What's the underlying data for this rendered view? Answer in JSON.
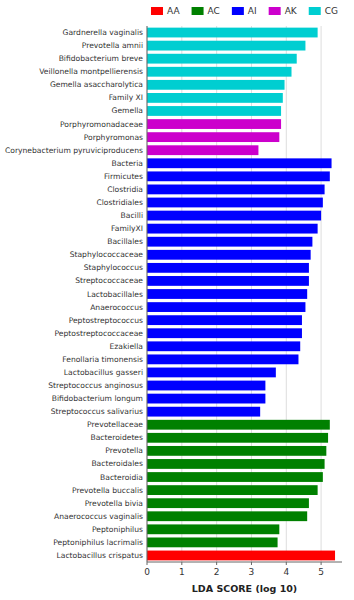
{
  "chart_data": {
    "type": "bar",
    "orientation": "horizontal",
    "categories": [
      "Gardnerella vaginalis",
      "Prevotella amnii",
      "Bifidobacterium breve",
      "Veillonella montpellierensis",
      "Gemella asaccharolytica",
      "Family XI",
      "Gemella",
      "Porphyromonadaceae",
      "Porphyromonas",
      "Corynebacterium pyruviciproducens",
      "Bacteria",
      "Firmicutes",
      "Clostridia",
      "Clostridiales",
      "Bacilli",
      "FamilyXI",
      "Bacillales",
      "Staphylococcaceae",
      "Staphylococcus",
      "Streptococcaceae",
      "Lactobacillales",
      "Anaerococcus",
      "Peptostreptococcus",
      "Peptostreptococcaceae",
      "Ezakiella",
      "Fenollaria timonensis",
      "Lactobacillus gasseri",
      "Streptococcus anginosus",
      "Bifidobacterium longum",
      "Streptococcus salivarius",
      "Prevotellaceae",
      "Bacteroidetes",
      "Prevotella",
      "Bacteroidales",
      "Bacteroidia",
      "Prevotella buccalis",
      "Prevotella bivia",
      "Anaerococcus vaginalis",
      "Peptoniphilus",
      "Peptoniphilus lacrimalis",
      "Lactobacillus crispatus"
    ],
    "series": [
      {
        "name": "AA",
        "color": "#FF0000",
        "values": [
          null,
          null,
          null,
          null,
          null,
          null,
          null,
          null,
          null,
          null,
          null,
          null,
          null,
          null,
          null,
          null,
          null,
          null,
          null,
          null,
          null,
          null,
          null,
          null,
          null,
          null,
          null,
          null,
          null,
          null,
          null,
          null,
          null,
          null,
          null,
          null,
          null,
          null,
          null,
          null,
          5.4
        ]
      },
      {
        "name": "AC",
        "color": "#008000",
        "values": [
          null,
          null,
          null,
          null,
          null,
          null,
          null,
          null,
          null,
          null,
          null,
          null,
          null,
          null,
          null,
          null,
          null,
          null,
          null,
          null,
          null,
          null,
          null,
          null,
          null,
          null,
          null,
          null,
          null,
          null,
          5.25,
          5.2,
          5.15,
          5.1,
          5.05,
          4.9,
          4.65,
          4.6,
          3.8,
          3.75,
          null
        ]
      },
      {
        "name": "AI",
        "color": "#0000FF",
        "values": [
          null,
          null,
          null,
          null,
          null,
          null,
          null,
          null,
          null,
          null,
          5.3,
          5.25,
          5.1,
          5.05,
          5.0,
          4.9,
          4.75,
          4.7,
          4.65,
          4.65,
          4.6,
          4.55,
          4.45,
          4.45,
          4.4,
          4.35,
          3.7,
          3.4,
          3.4,
          3.25,
          null,
          null,
          null,
          null,
          null,
          null,
          null,
          null,
          null,
          null,
          null
        ]
      },
      {
        "name": "AK",
        "color": "#CC00CC",
        "values": [
          null,
          null,
          null,
          null,
          null,
          null,
          null,
          3.85,
          3.8,
          3.2,
          null,
          null,
          null,
          null,
          null,
          null,
          null,
          null,
          null,
          null,
          null,
          null,
          null,
          null,
          null,
          null,
          null,
          null,
          null,
          null,
          null,
          null,
          null,
          null,
          null,
          null,
          null,
          null,
          null,
          null,
          null
        ]
      },
      {
        "name": "CG",
        "color": "#00CED1",
        "values": [
          4.9,
          4.55,
          4.3,
          4.15,
          3.95,
          3.9,
          3.85,
          null,
          null,
          null,
          null,
          null,
          null,
          null,
          null,
          null,
          null,
          null,
          null,
          null,
          null,
          null,
          null,
          null,
          null,
          null,
          null,
          null,
          null,
          null,
          null,
          null,
          null,
          null,
          null,
          null,
          null,
          null,
          null,
          null,
          null
        ]
      }
    ],
    "xlabel": "LDA SCORE (log 10)",
    "xlim": [
      0,
      5.6
    ],
    "xticks": [
      0,
      1,
      2,
      3,
      4,
      5
    ],
    "grid": true,
    "legend": "top"
  }
}
